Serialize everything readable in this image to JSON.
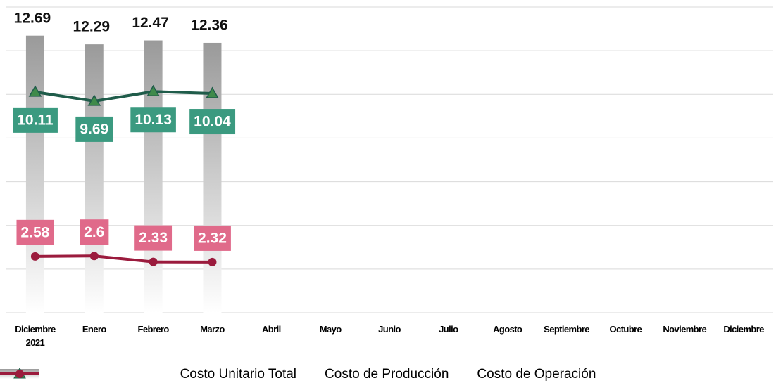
{
  "chart_data": {
    "type": "bar_line",
    "categories": [
      "Diciembre 2021",
      "Enero",
      "Febrero",
      "Marzo",
      "Abril",
      "Mayo",
      "Junio",
      "Julio",
      "Agosto",
      "Septiembre",
      "Octubre",
      "Noviembre",
      "Diciembre"
    ],
    "series": [
      {
        "name": "Costo Unitario Total",
        "type": "bar",
        "color": "#9a9a9a",
        "values": [
          12.69,
          12.29,
          12.47,
          12.36,
          null,
          null,
          null,
          null,
          null,
          null,
          null,
          null,
          null
        ]
      },
      {
        "name": "Costo de Producción",
        "type": "line",
        "marker": "triangle",
        "color": "#1f5c4a",
        "label_color": "#3b9a80",
        "values": [
          10.11,
          9.69,
          10.13,
          10.04,
          null,
          null,
          null,
          null,
          null,
          null,
          null,
          null,
          null
        ]
      },
      {
        "name": "Costo de Operación",
        "type": "line",
        "marker": "circle",
        "color": "#9b1b3d",
        "label_color": "#e06a8a",
        "values": [
          2.58,
          2.6,
          2.33,
          2.32,
          null,
          null,
          null,
          null,
          null,
          null,
          null,
          null,
          null
        ]
      }
    ],
    "ylim": [
      0,
      14
    ],
    "yticks": [
      0,
      2,
      4,
      6,
      8,
      10,
      12,
      14
    ],
    "grid": true
  }
}
